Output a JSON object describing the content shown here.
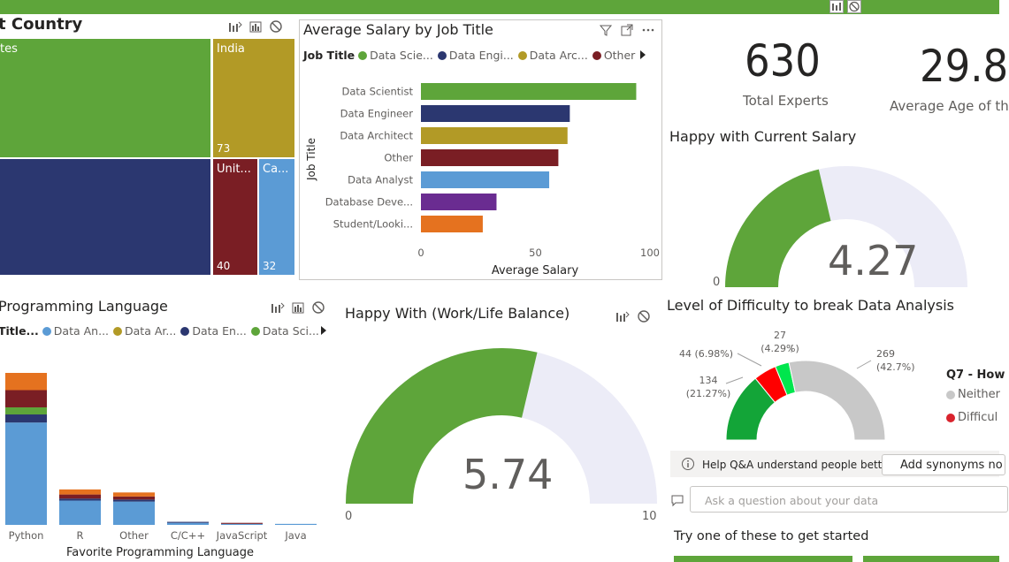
{
  "toolbar": {
    "icons": [
      "focus-mode-icon",
      "no-filter-icon"
    ]
  },
  "country_treemap": {
    "title": "t Country",
    "tiles": [
      {
        "label": "tes",
        "value": "",
        "color": "#5ea53a"
      },
      {
        "label": "",
        "value": "",
        "color": "#2b3770"
      },
      {
        "label": "India",
        "value": "73",
        "color": "#b29a26"
      },
      {
        "label": "Unit...",
        "value": "40",
        "color": "#7a1e24"
      },
      {
        "label": "Ca...",
        "value": "32",
        "color": "#5b9bd5"
      }
    ]
  },
  "salary_chart": {
    "title": "Average Salary by Job Title",
    "legend_label": "Job Title",
    "legend": [
      {
        "name": "Data Scie...",
        "color": "#5ea53a"
      },
      {
        "name": "Data Engi...",
        "color": "#2b3770"
      },
      {
        "name": "Data Arc...",
        "color": "#b29a26"
      },
      {
        "name": "Other",
        "color": "#7a1e24"
      }
    ],
    "ylabel": "Job Title",
    "xlabel": "Average Salary",
    "ticks": [
      "0",
      "50",
      "100"
    ]
  },
  "cards": {
    "total_experts": {
      "value": "630",
      "label": "Total Experts"
    },
    "average_age": {
      "value": "29.8",
      "label": "Average Age of th"
    }
  },
  "salary_gauge": {
    "title": "Happy with Current Salary",
    "value": "4.27",
    "min": "0"
  },
  "language_chart": {
    "title": "Programming Language",
    "legend_label": "Title...",
    "legend": [
      {
        "name": "Data An...",
        "color": "#5b9bd5"
      },
      {
        "name": "Data Ar...",
        "color": "#b29a26"
      },
      {
        "name": "Data En...",
        "color": "#2b3770"
      },
      {
        "name": "Data Sci...",
        "color": "#5ea53a"
      }
    ],
    "xlabel": "Favorite Programming Language"
  },
  "worklife_gauge": {
    "title": "Happy With (Work/Life Balance)",
    "value": "5.74",
    "min": "0",
    "max": "10"
  },
  "difficulty_chart": {
    "title": "Level of Difficulty to break Data Analysis",
    "legend_title": "Q7 - How",
    "legend": [
      {
        "name": "Neither",
        "color": "#c8c8c8"
      },
      {
        "name": "Difficul",
        "color": "#d9232d"
      }
    ]
  },
  "qa": {
    "hint": "Help Q&A understand people bett...",
    "synonyms_button": "Add synonyms no",
    "placeholder": "Ask a question about your data",
    "try_text": "Try one of these to get started"
  },
  "chart_data": [
    {
      "type": "bar",
      "title": "Average Salary by Job Title",
      "xlabel": "Average Salary",
      "ylabel": "Job Title",
      "categories": [
        "Data Scientist",
        "Data Engineer",
        "Data Architect",
        "Other",
        "Data Analyst",
        "Database Deve...",
        "Student/Looki..."
      ],
      "values": [
        94,
        65,
        64,
        60,
        56,
        33,
        27
      ],
      "colors": [
        "#5ea53a",
        "#2b3770",
        "#b29a26",
        "#7a1e24",
        "#5b9bd5",
        "#6a2c91",
        "#e5721f"
      ],
      "xlim": [
        0,
        100
      ]
    },
    {
      "type": "bar",
      "stacked": true,
      "xlabel": "Favorite Programming Language",
      "categories": [
        "Python",
        "R",
        "Other",
        "C/C++",
        "JavaScript",
        "Java"
      ],
      "series": [
        {
          "name": "Data An...",
          "color": "#5b9bd5",
          "values": [
            101,
            24,
            23,
            2,
            1,
            1
          ]
        },
        {
          "name": "Data En...",
          "color": "#2b3770",
          "values": [
            8,
            2,
            2,
            1,
            0,
            0
          ]
        },
        {
          "name": "Data Sci...",
          "color": "#5ea53a",
          "values": [
            7,
            0,
            0,
            0,
            0,
            0
          ]
        },
        {
          "name": "",
          "color": "#7a1e24",
          "values": [
            17,
            4,
            3,
            0,
            1,
            0
          ]
        },
        {
          "name": "",
          "color": "#e5721f",
          "values": [
            17,
            5,
            4,
            0,
            0,
            0
          ]
        }
      ],
      "ylim": [
        0,
        150
      ]
    },
    {
      "type": "pie",
      "donut": true,
      "semicircle": true,
      "title": "Level of Difficulty to break Data Analysis",
      "slices": [
        {
          "value": 134,
          "label": "134",
          "pct": "(21.27%)",
          "color": "#13a538"
        },
        {
          "value": 44,
          "label": "44 (6.98%)",
          "pct": "",
          "color": "#ff0000"
        },
        {
          "value": 27,
          "label": "27",
          "pct": "(4.29%)",
          "color": "#00e64d"
        },
        {
          "value": 269,
          "label": "269",
          "pct": "(42.7%)",
          "color": "#c8c8c8"
        }
      ]
    }
  ]
}
